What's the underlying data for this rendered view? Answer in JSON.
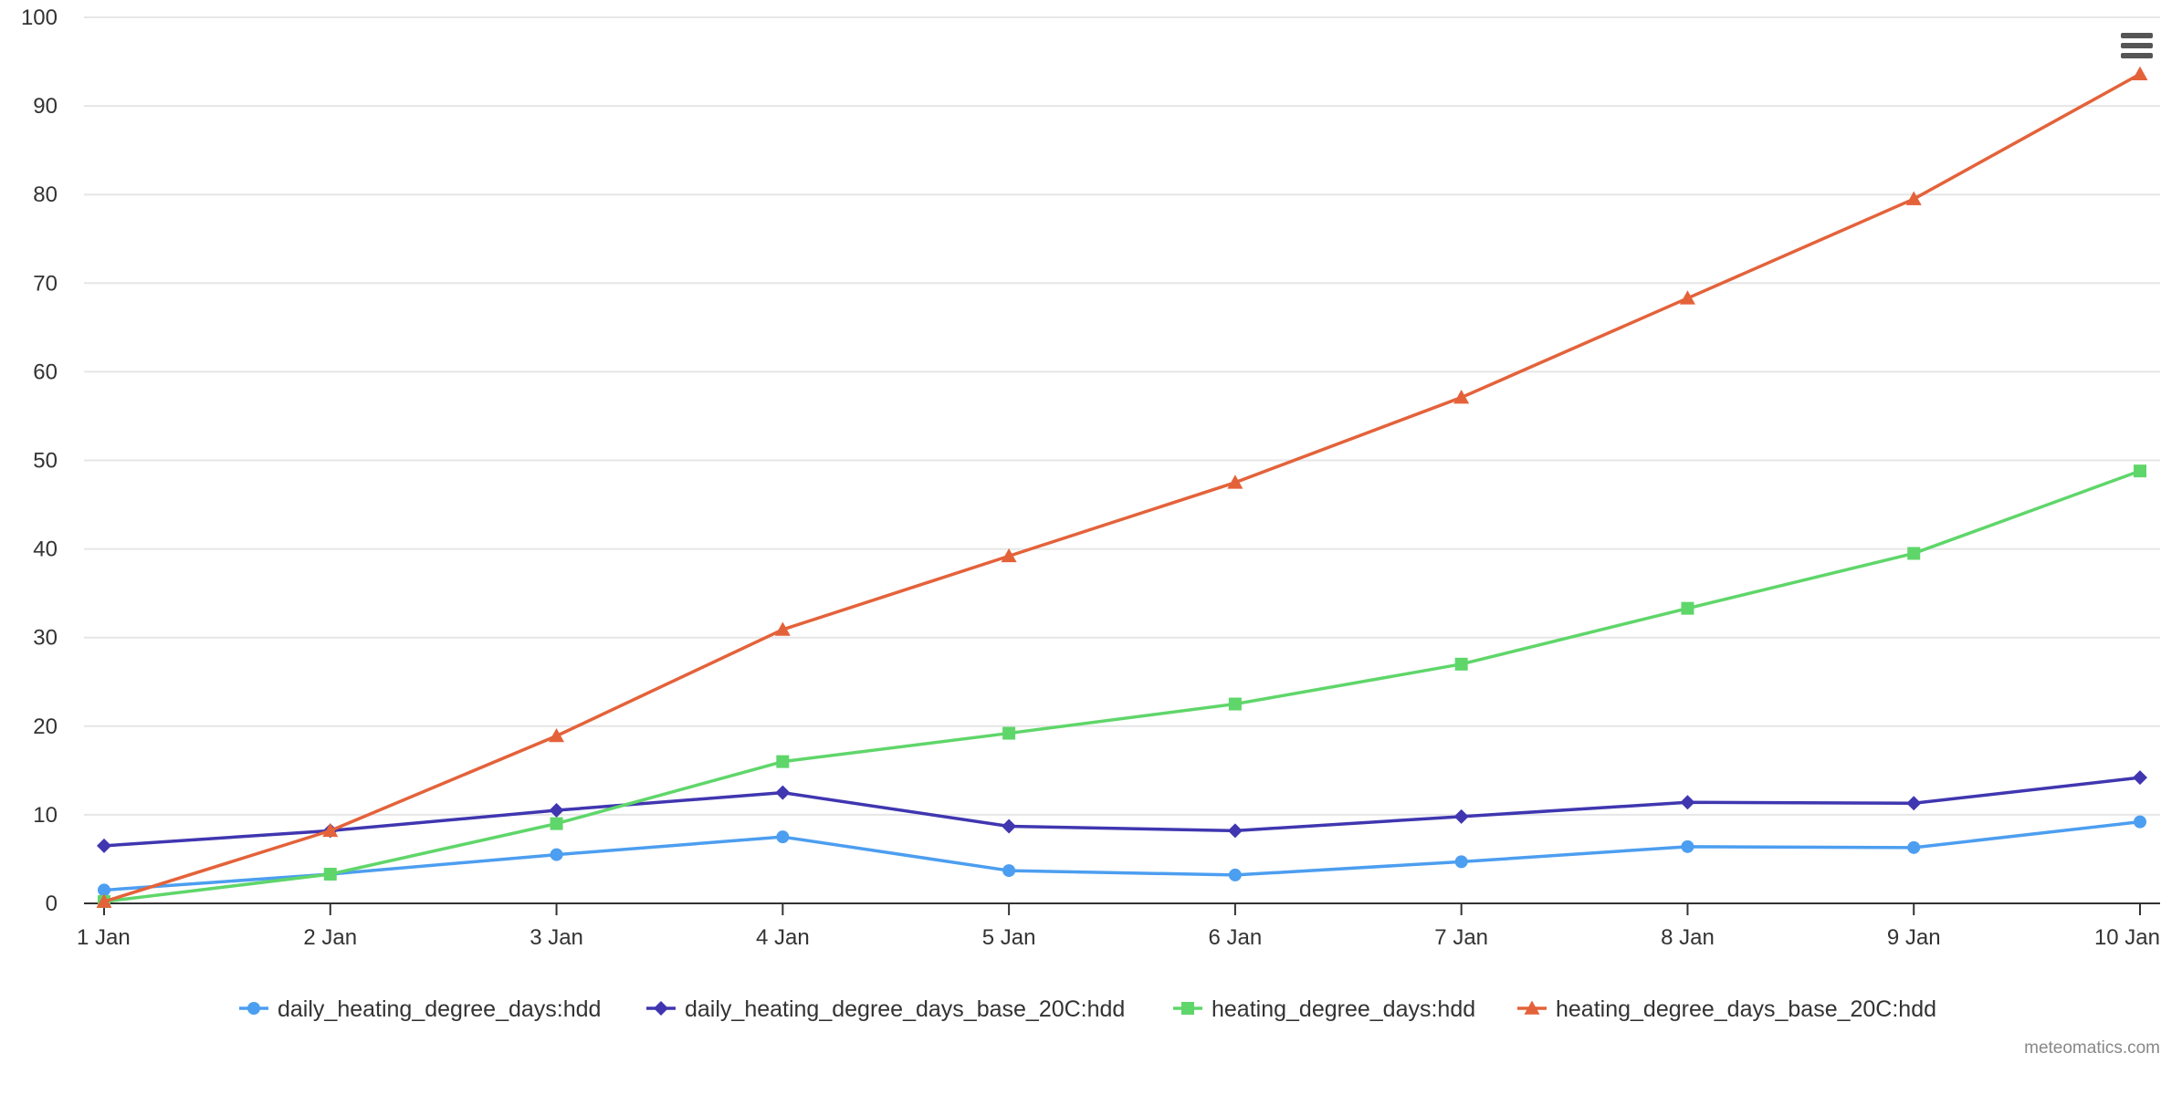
{
  "credit": "meteomatics.com",
  "menu_icon": "hamburger-menu-icon",
  "chart_data": {
    "type": "line",
    "categories": [
      "1 Jan",
      "2 Jan",
      "3 Jan",
      "4 Jan",
      "5 Jan",
      "6 Jan",
      "7 Jan",
      "8 Jan",
      "9 Jan",
      "10 Jan"
    ],
    "ylim": [
      0,
      100
    ],
    "yticks": [
      0,
      10,
      20,
      30,
      40,
      50,
      60,
      70,
      80,
      90,
      100
    ],
    "grid": true,
    "legend_position": "bottom-center",
    "series": [
      {
        "name": "daily_heating_degree_days:hdd",
        "color": "#4c9ef0",
        "marker": "circle",
        "values": [
          1.5,
          3.3,
          5.5,
          7.5,
          3.7,
          3.2,
          4.7,
          6.4,
          6.3,
          9.2
        ]
      },
      {
        "name": "daily_heating_degree_days_base_20C:hdd",
        "color": "#4036b0",
        "marker": "diamond",
        "values": [
          6.5,
          8.2,
          10.5,
          12.5,
          8.7,
          8.2,
          9.8,
          11.4,
          11.3,
          14.2
        ]
      },
      {
        "name": "heating_degree_days:hdd",
        "color": "#5fd66a",
        "marker": "square",
        "values": [
          0.2,
          3.3,
          9.0,
          16.0,
          19.2,
          22.5,
          27.0,
          33.3,
          39.5,
          48.8
        ]
      },
      {
        "name": "heating_degree_days_base_20C:hdd",
        "color": "#e4623a",
        "marker": "triangle",
        "values": [
          0.2,
          8.2,
          18.9,
          30.9,
          39.2,
          47.5,
          57.1,
          68.3,
          79.5,
          93.6
        ]
      }
    ]
  }
}
